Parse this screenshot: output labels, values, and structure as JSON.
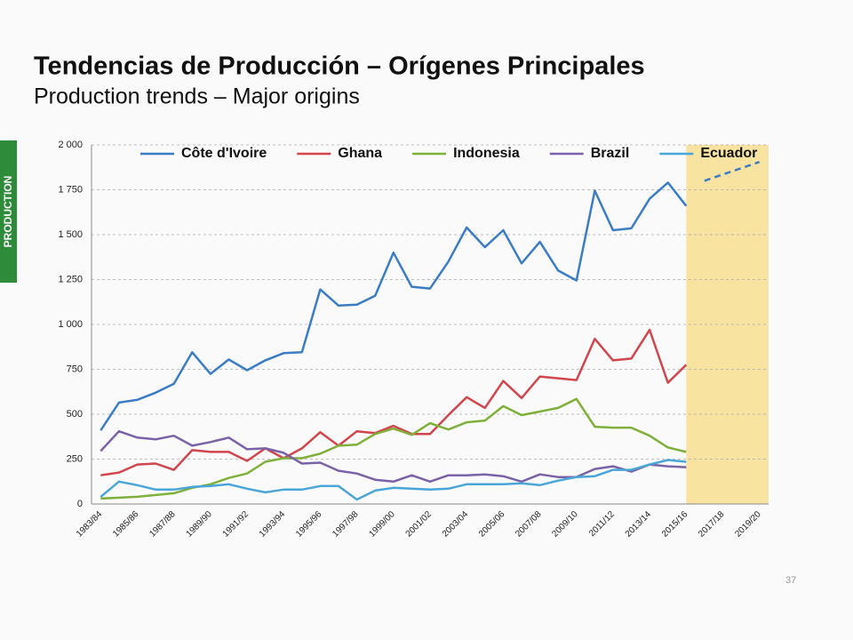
{
  "slide": {
    "title": "Tendencias de Producción – Orígenes Principales",
    "subtitle": "Production trends – Major origins",
    "side_tab": "PRODUCTION",
    "page_number": "37"
  },
  "chart_data": {
    "type": "line",
    "categories": [
      "1983/84",
      null,
      "1985/86",
      null,
      "1987/88",
      null,
      "1989/90",
      null,
      "1991/92",
      null,
      "1993/94",
      null,
      "1995/96",
      null,
      "1997/98",
      null,
      "1999/00",
      null,
      "2001/02",
      null,
      "2003/04",
      null,
      "2005/06",
      null,
      "2007/08",
      null,
      "2009/10",
      null,
      "2011/12",
      null,
      "2013/14",
      null,
      "2015/16",
      null,
      "2017/18",
      null,
      "2019/20"
    ],
    "series": [
      {
        "name": "Côte d'Ivoire",
        "color": "#3a7dc4",
        "values": [
          410,
          565,
          580,
          620,
          670,
          845,
          725,
          805,
          745,
          800,
          840,
          845,
          1195,
          1105,
          1110,
          1160,
          1400,
          1210,
          1200,
          1350,
          1540,
          1430,
          1525,
          1340,
          1460,
          1300,
          1245,
          1745,
          1525,
          1535,
          1700,
          1790,
          1660,
          null,
          null,
          null,
          null
        ],
        "forecast_values": [
          null,
          null,
          null,
          null,
          null,
          null,
          null,
          null,
          null,
          null,
          null,
          null,
          null,
          null,
          null,
          null,
          null,
          null,
          null,
          null,
          null,
          null,
          null,
          null,
          null,
          null,
          null,
          null,
          null,
          null,
          null,
          null,
          null,
          1800,
          1835,
          1870,
          1905
        ]
      },
      {
        "name": "Ghana",
        "color": "#d0464c",
        "values": [
          160,
          175,
          220,
          225,
          190,
          300,
          290,
          290,
          240,
          310,
          255,
          310,
          400,
          325,
          405,
          395,
          435,
          390,
          390,
          495,
          595,
          535,
          685,
          590,
          710,
          700,
          690,
          920,
          800,
          810,
          970,
          675,
          775,
          null,
          null,
          null,
          null
        ]
      },
      {
        "name": "Indonesia",
        "color": "#7fb03a",
        "values": [
          30,
          35,
          40,
          50,
          60,
          90,
          110,
          145,
          170,
          235,
          255,
          255,
          280,
          325,
          330,
          390,
          420,
          385,
          450,
          415,
          455,
          465,
          545,
          495,
          515,
          535,
          585,
          430,
          425,
          425,
          380,
          315,
          290,
          null,
          null,
          null,
          null
        ]
      },
      {
        "name": "Brazil",
        "color": "#7a62a8",
        "values": [
          295,
          405,
          370,
          360,
          380,
          325,
          345,
          370,
          305,
          310,
          285,
          225,
          230,
          185,
          170,
          135,
          125,
          160,
          125,
          160,
          160,
          165,
          155,
          125,
          165,
          150,
          150,
          195,
          210,
          180,
          220,
          210,
          205,
          null,
          null,
          null,
          null
        ]
      },
      {
        "name": "Ecuador",
        "color": "#4aa6d8",
        "values": [
          40,
          125,
          105,
          80,
          80,
          95,
          100,
          110,
          85,
          65,
          80,
          80,
          100,
          100,
          25,
          75,
          90,
          85,
          80,
          85,
          110,
          110,
          110,
          115,
          105,
          130,
          150,
          155,
          190,
          190,
          220,
          245,
          235,
          null,
          null,
          null,
          null
        ]
      }
    ],
    "ylim": [
      0,
      2000
    ],
    "yticks": [
      0,
      250,
      500,
      750,
      {
        "value": 1000,
        "label": "1 000"
      },
      {
        "value": 1250,
        "label": "1 250"
      },
      {
        "value": 1500,
        "label": "1 500"
      },
      {
        "value": 1750,
        "label": "1 750"
      },
      {
        "value": 2000,
        "label": "2 000"
      }
    ],
    "grid": true,
    "legend": "top",
    "shaded_region": {
      "from": "2015/16",
      "color": "#f9e3a0"
    }
  }
}
